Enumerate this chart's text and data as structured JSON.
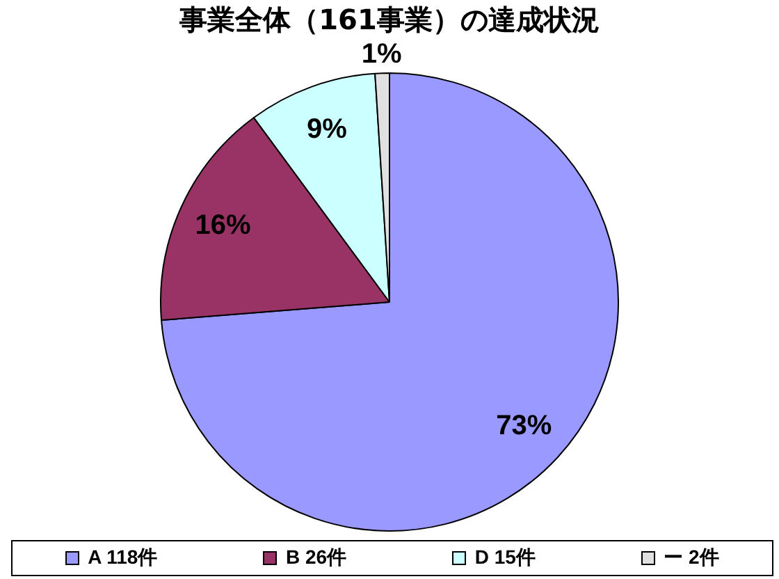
{
  "chart_data": {
    "type": "pie",
    "title": "事業全体（161事業）の達成状況",
    "categories": [
      "A 118件",
      "B 26件",
      "D 15件",
      "ー 2件"
    ],
    "values": [
      73,
      16,
      9,
      1
    ],
    "colors": [
      "#9999ff",
      "#993366",
      "#ccffff",
      "#e0e0e0"
    ],
    "value_labels": [
      "73%",
      "16%",
      "9%",
      "1%"
    ],
    "legend": "bottom"
  }
}
